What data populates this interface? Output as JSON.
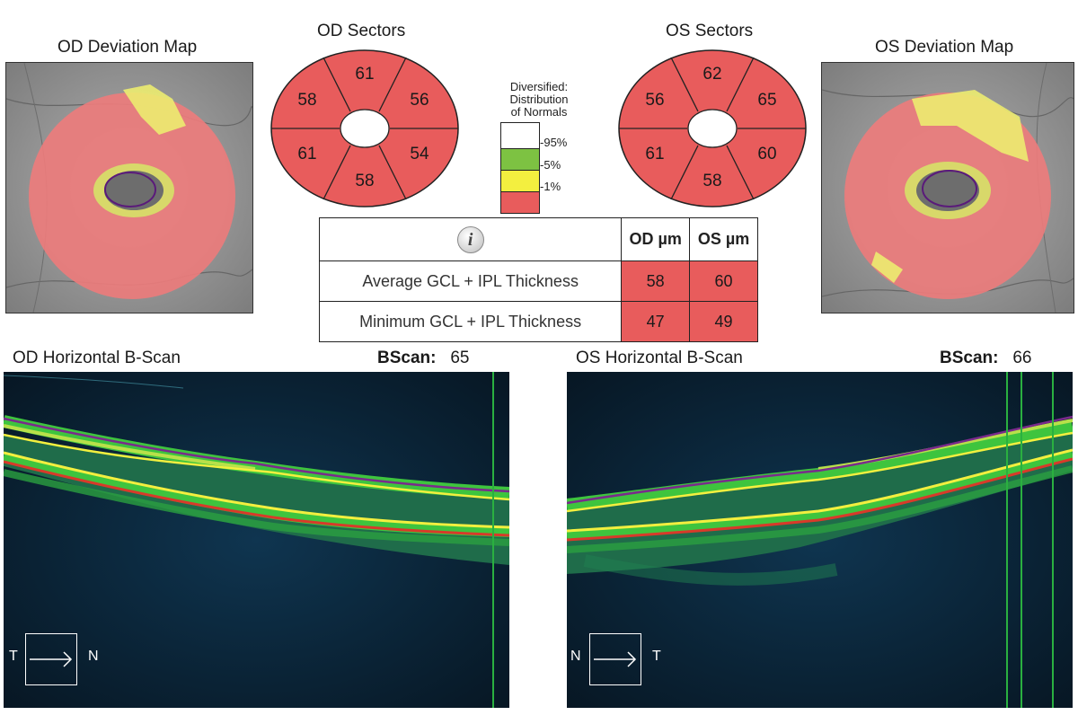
{
  "od_deviation_title": "OD Deviation Map",
  "os_deviation_title": "OS Deviation Map",
  "od_sectors": {
    "title": "OD Sectors",
    "values": [
      "61",
      "56",
      "54",
      "58",
      "61",
      "58"
    ]
  },
  "os_sectors": {
    "title": "OS Sectors",
    "values": [
      "62",
      "65",
      "60",
      "58",
      "61",
      "56"
    ]
  },
  "legend": {
    "title_lines": [
      "Diversified:",
      "Distribution",
      "of Normals"
    ],
    "labels": [
      "95%",
      "5%",
      "1%"
    ],
    "colors": {
      "white": "#ffffff",
      "green": "#7dc242",
      "yellow": "#f3ef3f",
      "red": "#e85c5c"
    }
  },
  "table": {
    "info_icon": "i",
    "headers": [
      "OD µm",
      "OS µm"
    ],
    "rows": [
      {
        "label": "Average GCL + IPL Thickness",
        "od": "58",
        "os": "60"
      },
      {
        "label": "Minimum GCL + IPL Thickness",
        "od": "47",
        "os": "49"
      }
    ]
  },
  "od_bscan": {
    "title": "OD Horizontal B-Scan",
    "bscan_label": "BScan:",
    "bscan_value": "65",
    "left": "T",
    "right": "N"
  },
  "os_bscan": {
    "title": "OS Horizontal B-Scan",
    "bscan_label": "BScan:",
    "bscan_value": "66",
    "left": "N",
    "right": "T"
  },
  "colors": {
    "abnormal_red": "#e85c5c",
    "borderline_yellow": "#f3ef3f",
    "scan_bg": "#0a1a28",
    "contour_purple": "#7a2a8c"
  }
}
